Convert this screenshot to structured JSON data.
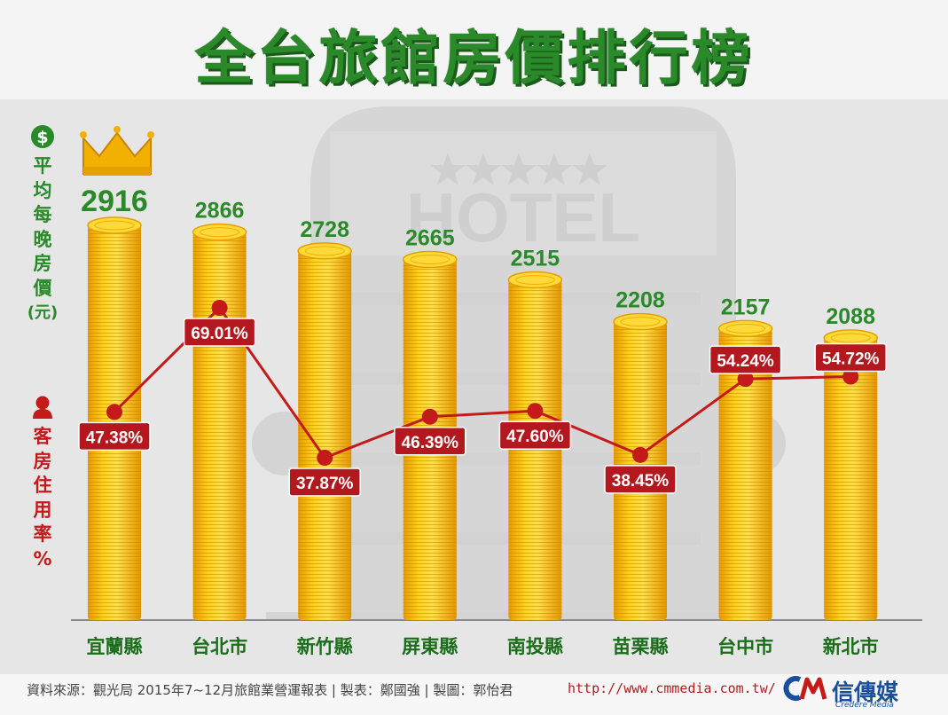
{
  "title": "全台旅館房價排行榜",
  "y_labels": {
    "price": [
      "平",
      "均",
      "每",
      "晚",
      "房",
      "價",
      "(元)"
    ],
    "occupancy": [
      "客",
      "房",
      "住",
      "用",
      "率",
      "%"
    ]
  },
  "icons": {
    "price": "dollar-sign-icon",
    "occupancy": "person-icon",
    "top": "crown-icon",
    "background": "hotel-building-icon"
  },
  "background_sign": "HOTEL",
  "chart_data": {
    "type": "bar",
    "categories": [
      "宜蘭縣",
      "台北市",
      "新竹縣",
      "屏東縣",
      "南投縣",
      "苗栗縣",
      "台中市",
      "新北市"
    ],
    "series": [
      {
        "values": [
          2916,
          2866,
          2728,
          2665,
          2515,
          2208,
          2157,
          2088
        ]
      },
      {
        "type": "line",
        "values": [
          47.38,
          69.01,
          37.87,
          46.39,
          47.6,
          38.45,
          54.24,
          54.72
        ],
        "labels": [
          "47.38%",
          "69.01%",
          "37.87%",
          "46.39%",
          "47.60%",
          "38.45%",
          "54.24%",
          "54.72%"
        ]
      }
    ],
    "bar_labels": [
      "2916",
      "2866",
      "2728",
      "2665",
      "2515",
      "2208",
      "2157",
      "2088"
    ],
    "colors": {
      "bar": "#f4b400",
      "bar_label": "#2a8a2a",
      "line": "#c41a1a",
      "line_label_bg": "#b3181e"
    }
  },
  "footer": {
    "source": "資料來源：觀光局 2015年7~12月旅館業營運報表 | 製表：鄭國強 | 製圖：郭怡君",
    "url": "http://www.cmmedia.com.tw/",
    "logo_name": "信傳媒",
    "logo_sub": "Credere Media"
  }
}
